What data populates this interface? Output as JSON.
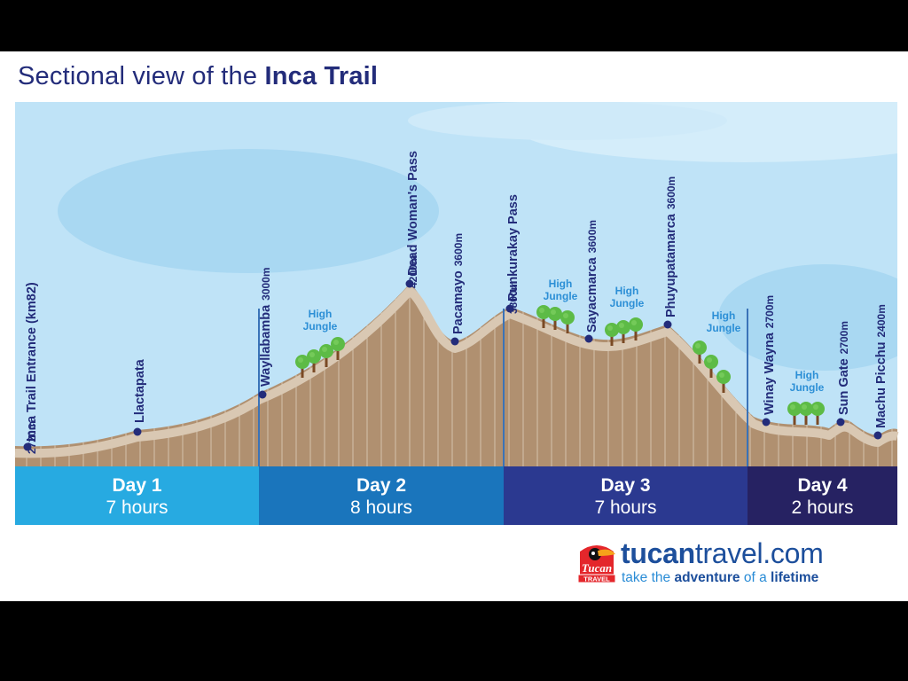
{
  "title": {
    "prefix": "Sectional view of the ",
    "emphasis": "Inca Trail"
  },
  "waypoints": [
    {
      "name": "Inca Trail Entrance (km82)",
      "altitude": "2720m",
      "altitude_m": 2720
    },
    {
      "name": "Llactapata",
      "altitude": "",
      "altitude_m": null
    },
    {
      "name": "Wayllabamba",
      "altitude": "3000m",
      "altitude_m": 3000
    },
    {
      "name": "Dead Woman's Pass",
      "altitude": "4200m",
      "altitude_m": 4200
    },
    {
      "name": "Pacamayo",
      "altitude": "3600m",
      "altitude_m": 3600
    },
    {
      "name": "Runkurakay Pass",
      "altitude": "3800m",
      "altitude_m": 3800
    },
    {
      "name": "Sayacmarca",
      "altitude": "3600m",
      "altitude_m": 3600
    },
    {
      "name": "Phuyupatamarca",
      "altitude": "3600m",
      "altitude_m": 3600
    },
    {
      "name": "Winay Wayna",
      "altitude": "2700m",
      "altitude_m": 2700
    },
    {
      "name": "Sun Gate",
      "altitude": "2700m",
      "altitude_m": 2700
    },
    {
      "name": "Machu Picchu",
      "altitude": "2400m",
      "altitude_m": 2400
    }
  ],
  "vegetation": {
    "line1": "High",
    "line2": "Jungle"
  },
  "days": [
    {
      "label": "Day 1",
      "duration": "7 hours",
      "color": "#27aae1"
    },
    {
      "label": "Day 2",
      "duration": "8 hours",
      "color": "#1a75bc"
    },
    {
      "label": "Day 3",
      "duration": "7 hours",
      "color": "#2b3990"
    },
    {
      "label": "Day 4",
      "duration": "2 hours",
      "color": "#262262"
    }
  ],
  "colors": {
    "title": "#232c7a",
    "sky": "#bfe3f7",
    "terrain": "#b09070",
    "terrain_highlight": "#d9c8b3",
    "marker": "#232c7a",
    "jungle_text": "#2c8fd6",
    "tree": "#5dbb46"
  },
  "logo": {
    "brand_bold": "tucan",
    "brand_rest": "travel.com",
    "tagline_1": "take the ",
    "tagline_2": "adventure",
    "tagline_3": " of a ",
    "tagline_4": "lifetime",
    "badge_top": "Tucan",
    "badge_bottom": "TRAVEL"
  }
}
